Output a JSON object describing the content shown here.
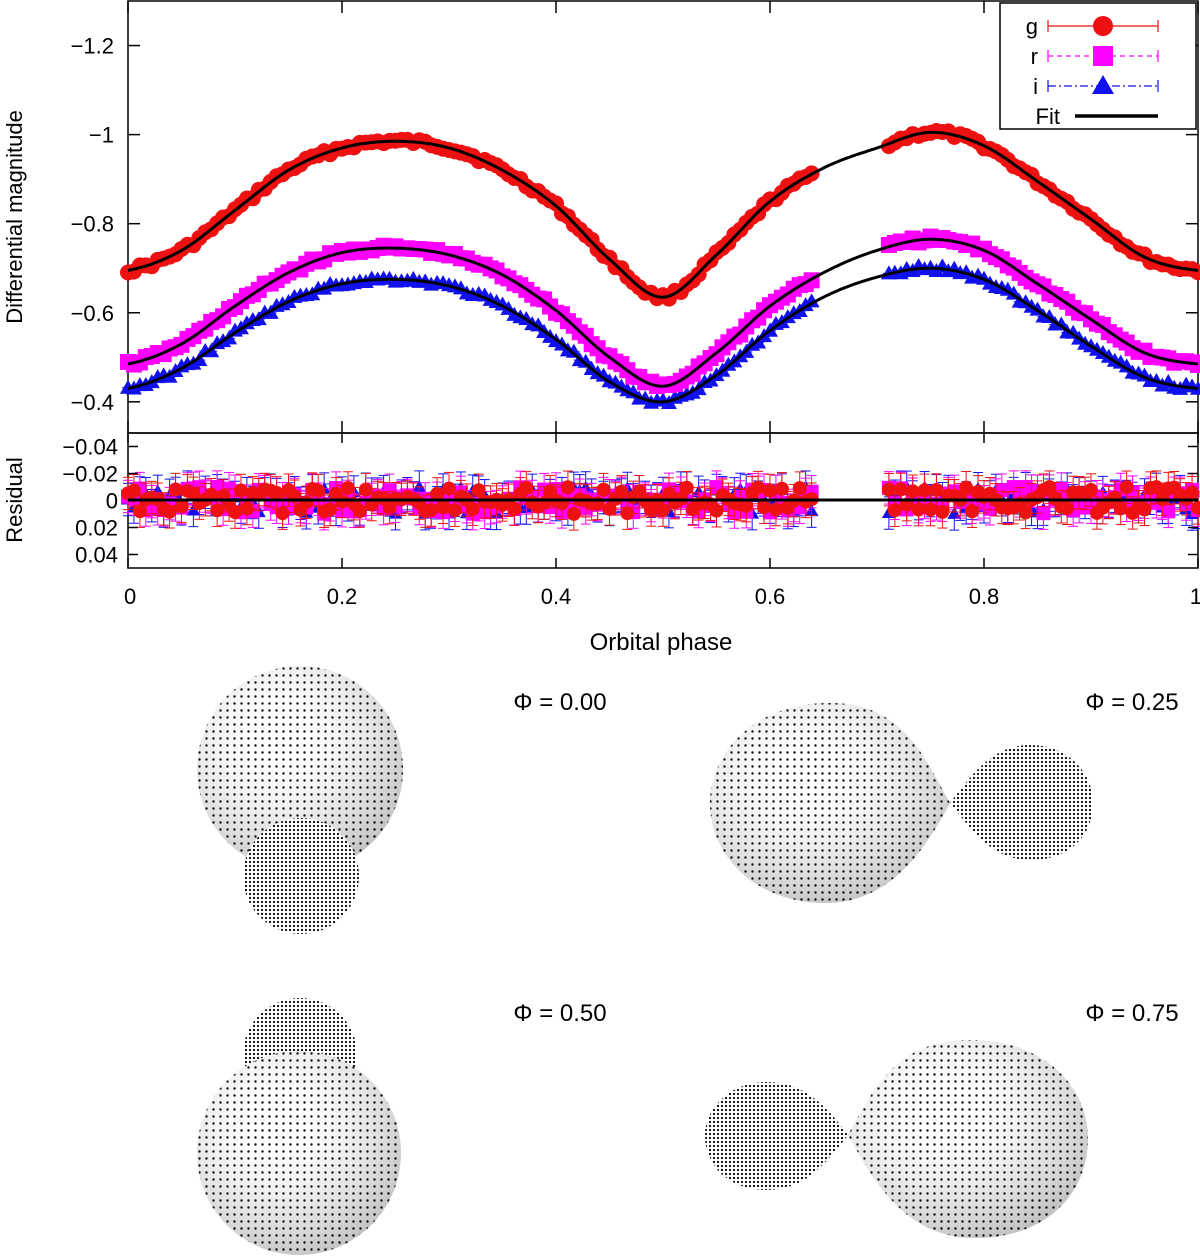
{
  "chart_data": [
    {
      "type": "line",
      "panel": "light-curve",
      "title": "",
      "xlabel": "",
      "ylabel": "Differential magnitude",
      "xlim": [
        0,
        1
      ],
      "ylim": [
        -1.3,
        -0.33
      ],
      "y_inverted": true,
      "yticks": [
        -1.2,
        -1,
        -0.8,
        -0.6,
        -0.4
      ],
      "ytick_labels": [
        "−1.2",
        "−1",
        "−0.8",
        "−0.6",
        "−0.4"
      ],
      "gap": [
        0.64,
        0.71
      ],
      "legend": {
        "position": "top-right",
        "entries": [
          "g",
          "r",
          "i",
          "Fit"
        ]
      },
      "series": [
        {
          "name": "g",
          "color": "#ee1111",
          "marker": "circle",
          "fit_x": [
            0,
            0.05,
            0.1,
            0.15,
            0.2,
            0.25,
            0.3,
            0.35,
            0.4,
            0.45,
            0.5,
            0.55,
            0.6,
            0.65,
            0.7,
            0.75,
            0.8,
            0.85,
            0.9,
            0.95,
            1.0
          ],
          "fit_y": [
            -0.695,
            -0.74,
            -0.83,
            -0.92,
            -0.97,
            -0.985,
            -0.97,
            -0.92,
            -0.84,
            -0.72,
            -0.635,
            -0.73,
            -0.85,
            -0.925,
            -0.97,
            -1.005,
            -0.975,
            -0.895,
            -0.81,
            -0.725,
            -0.695
          ]
        },
        {
          "name": "r",
          "color": "#ff00ff",
          "marker": "square",
          "fit_x": [
            0,
            0.05,
            0.1,
            0.15,
            0.2,
            0.25,
            0.3,
            0.35,
            0.4,
            0.45,
            0.5,
            0.55,
            0.6,
            0.65,
            0.7,
            0.75,
            0.8,
            0.85,
            0.9,
            0.95,
            1.0
          ],
          "fit_y": [
            -0.485,
            -0.53,
            -0.615,
            -0.69,
            -0.735,
            -0.745,
            -0.73,
            -0.685,
            -0.605,
            -0.5,
            -0.435,
            -0.51,
            -0.615,
            -0.69,
            -0.74,
            -0.765,
            -0.74,
            -0.665,
            -0.585,
            -0.51,
            -0.485
          ]
        },
        {
          "name": "i",
          "color": "#1111ee",
          "marker": "triangle",
          "fit_x": [
            0,
            0.05,
            0.1,
            0.15,
            0.2,
            0.25,
            0.3,
            0.35,
            0.4,
            0.45,
            0.5,
            0.55,
            0.6,
            0.65,
            0.7,
            0.75,
            0.8,
            0.85,
            0.9,
            0.95,
            1.0
          ],
          "fit_y": [
            -0.43,
            -0.475,
            -0.555,
            -0.625,
            -0.665,
            -0.675,
            -0.66,
            -0.615,
            -0.54,
            -0.445,
            -0.4,
            -0.46,
            -0.56,
            -0.635,
            -0.68,
            -0.7,
            -0.675,
            -0.605,
            -0.525,
            -0.455,
            -0.43
          ]
        }
      ]
    },
    {
      "type": "scatter",
      "panel": "residuals",
      "xlabel": "Orbital phase",
      "ylabel": "Residual",
      "xlim": [
        0,
        1
      ],
      "ylim": [
        -0.05,
        0.05
      ],
      "y_inverted": true,
      "yticks": [
        -0.04,
        -0.02,
        0,
        0.02,
        0.04
      ],
      "ytick_labels": [
        "−0.04",
        "−0.02",
        "0",
        "0.02",
        "0.04"
      ],
      "xticks": [
        0,
        0.2,
        0.4,
        0.6,
        0.8,
        1
      ],
      "xtick_labels": [
        "0",
        "0.2",
        "0.4",
        "0.6",
        "0.8",
        "1"
      ],
      "scatter_amplitude": 0.01
    }
  ],
  "phase_views": [
    {
      "label": "Φ = 0.00"
    },
    {
      "label": "Φ = 0.25"
    },
    {
      "label": "Φ = 0.50"
    },
    {
      "label": "Φ = 0.75"
    }
  ]
}
